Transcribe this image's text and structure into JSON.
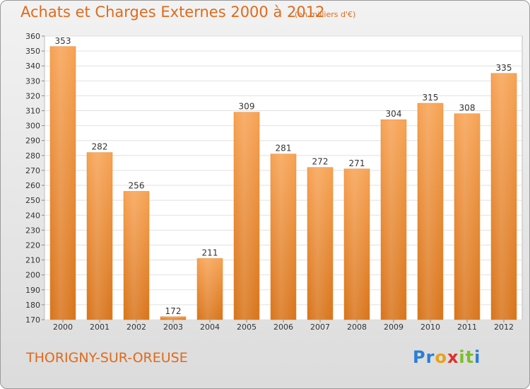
{
  "header": {
    "title": "Achats et Charges Externes 2000 à 2012",
    "unit": "(en milliers d'€)"
  },
  "footer": {
    "city": "THORIGNY-SUR-OREUSE",
    "logo_letters": [
      "P",
      "r",
      "o",
      "x",
      "i",
      "t",
      "i"
    ],
    "logo_colors": [
      "#2b7fd4",
      "#2b7fd4",
      "#e8a21a",
      "#e0302a",
      "#7bbf2a",
      "#7bbf2a",
      "#2b7fd4"
    ]
  },
  "chart_data": {
    "type": "bar",
    "categories": [
      "2000",
      "2001",
      "2002",
      "2003",
      "2004",
      "2005",
      "2006",
      "2007",
      "2008",
      "2009",
      "2010",
      "2011",
      "2012"
    ],
    "values": [
      353,
      282,
      256,
      172,
      211,
      309,
      281,
      272,
      271,
      304,
      315,
      308,
      335
    ],
    "ylim": [
      170,
      360
    ],
    "ytick_step": 10,
    "grid": true,
    "bar_color": "#f28a2a"
  }
}
